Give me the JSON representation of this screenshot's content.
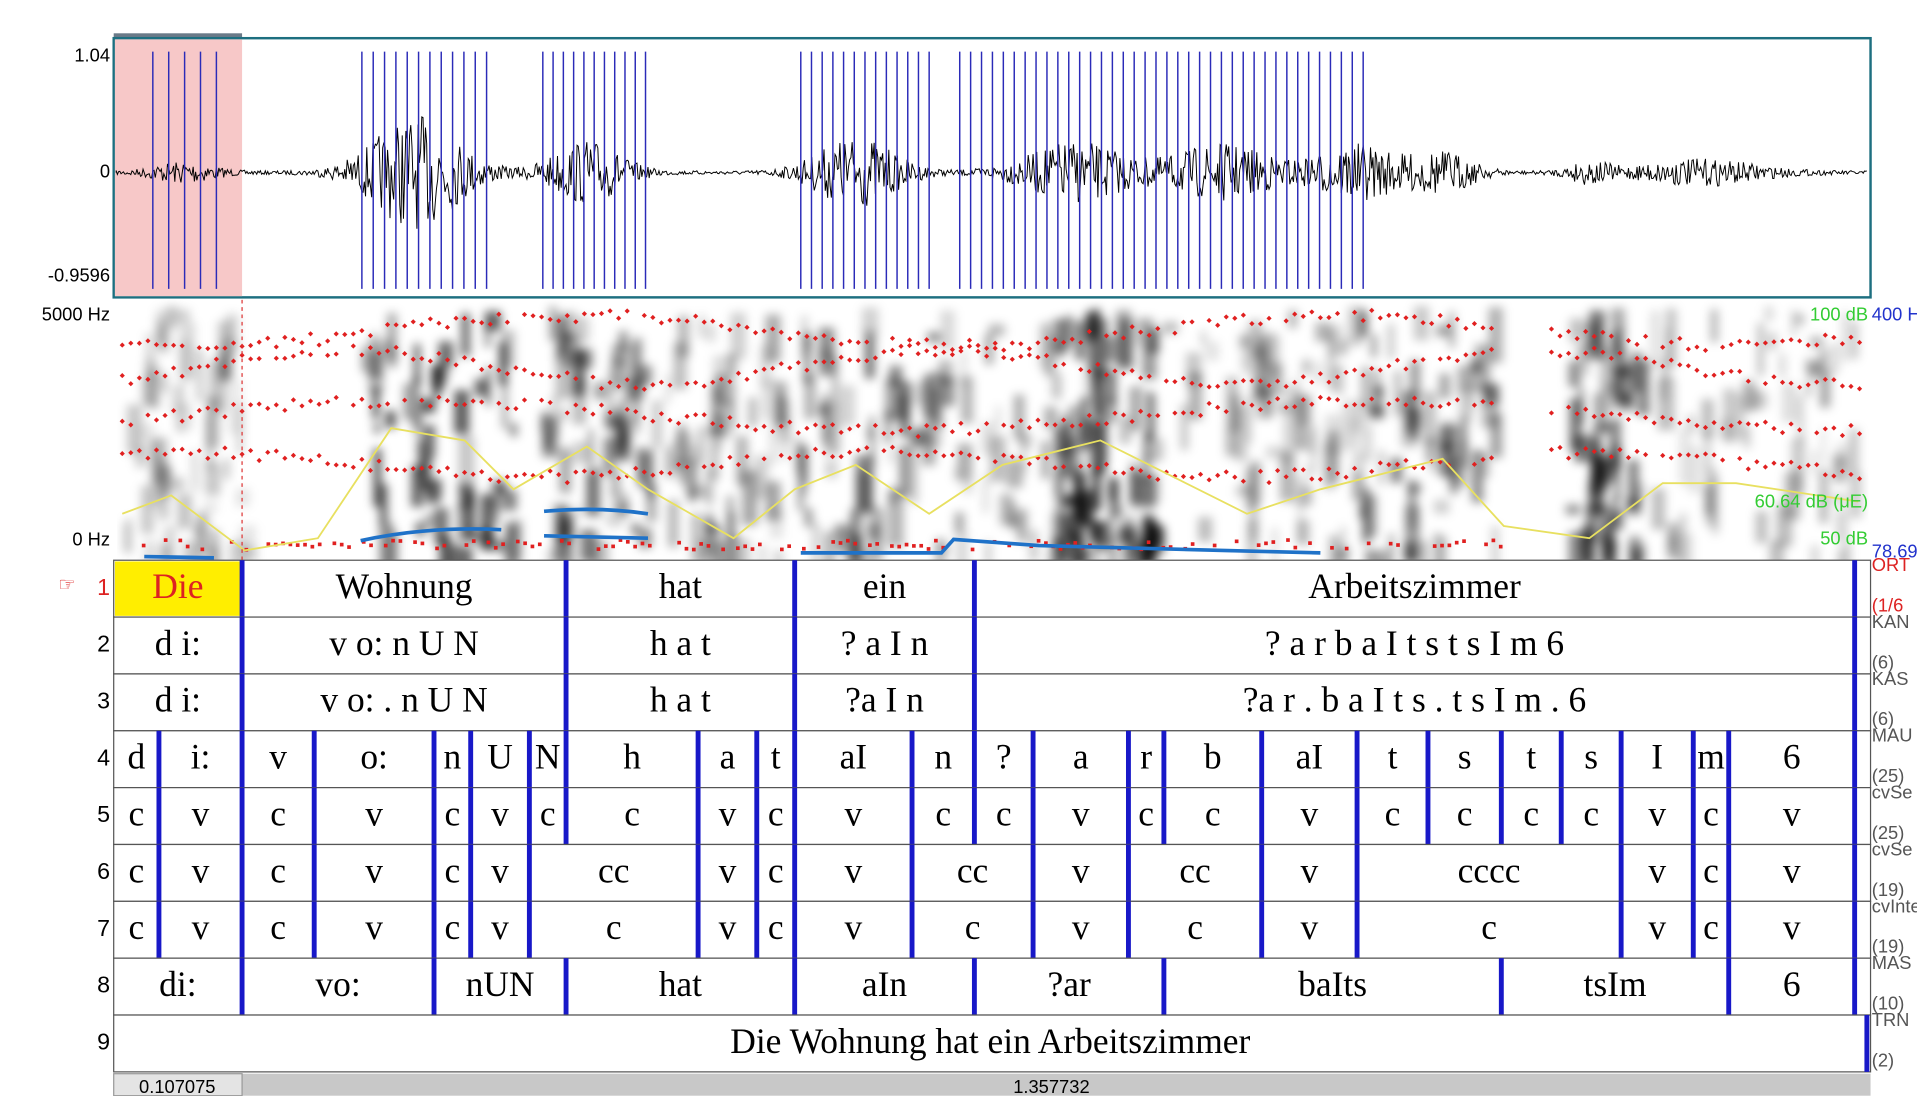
{
  "axis": {
    "wave_top": "1.04",
    "wave_zero": "0",
    "wave_bottom": "-0.9596",
    "spec_top": "5000 Hz",
    "spec_bottom": "0 Hz"
  },
  "right_labels": {
    "intensity_top": "100 dB",
    "pitch_top": "400 H",
    "intensity_cursor": "60.64 dB (μE)",
    "intensity_bottom": "50 dB",
    "pitch_bottom": "78.69"
  },
  "pointer": "☞",
  "tiers": [
    {
      "number": "1",
      "name": "ORT",
      "count": "(1/6",
      "intervals": [
        "Die",
        "Wohnung",
        "hat",
        "ein",
        "Arbeitszimmer"
      ]
    },
    {
      "number": "2",
      "name": "KAN",
      "count": "(6)",
      "intervals": [
        "d i:",
        "v o: n U N",
        "h a t",
        "? a I n",
        "? a r b a I t s t s I m 6"
      ]
    },
    {
      "number": "3",
      "name": "KAS",
      "count": "(6)",
      "intervals": [
        "d i:",
        "v o: . n U N",
        "h a t",
        "?a I n",
        "?a r . b a I t s . t s I m . 6"
      ]
    },
    {
      "number": "4",
      "name": "MAU",
      "count": "(25)",
      "intervals": [
        "d",
        "i:",
        "v",
        "o:",
        "n",
        "U",
        "N",
        "h",
        "a",
        "t",
        "aI",
        "n",
        "?",
        "a",
        "r",
        "b",
        "aI",
        "t",
        "s",
        "t",
        "s",
        "I",
        "m",
        "6"
      ]
    },
    {
      "number": "5",
      "name": "cvSe",
      "count": "(25)",
      "intervals": [
        "c",
        "v",
        "c",
        "v",
        "c",
        "v",
        "c",
        "c",
        "v",
        "c",
        "v",
        "c",
        "c",
        "v",
        "c",
        "c",
        "v",
        "c",
        "c",
        "c",
        "c",
        "v",
        "c",
        "v"
      ]
    },
    {
      "number": "6",
      "name": "cvSe",
      "count": "(19)",
      "intervals": [
        "c",
        "v",
        "c",
        "v",
        "c",
        "v",
        "cc",
        "v",
        "c",
        "v",
        "cc",
        "v",
        "cc",
        "v",
        "cccc",
        "v",
        "c",
        "v"
      ]
    },
    {
      "number": "7",
      "name": "cvInte",
      "count": "(19)",
      "intervals": [
        "c",
        "v",
        "c",
        "v",
        "c",
        "v",
        "c",
        "v",
        "c",
        "v",
        "c",
        "v",
        "c",
        "v",
        "c",
        "v",
        "c",
        "v"
      ]
    },
    {
      "number": "8",
      "name": "MAS",
      "count": "(10)",
      "intervals": [
        "di:",
        "vo:",
        "nUN",
        "hat",
        "aIn",
        "?ar",
        "baIts",
        "tsIm",
        "6"
      ]
    },
    {
      "number": "9",
      "name": "TRN",
      "count": "(2)",
      "intervals": [
        "Die Wohnung hat ein Arbeitszimmer"
      ]
    }
  ],
  "time": {
    "selection": "0.107075",
    "visible": "1.357732"
  }
}
